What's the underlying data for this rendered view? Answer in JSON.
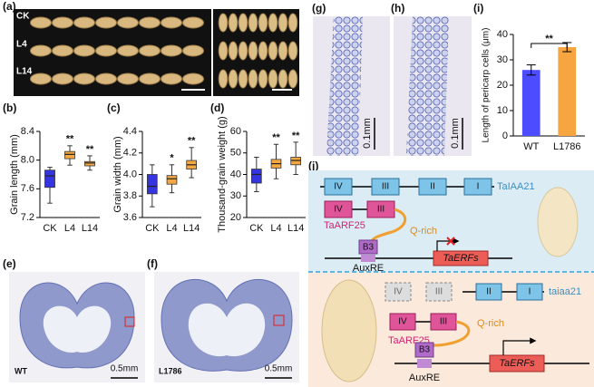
{
  "panel_labels": [
    "(a)",
    "(b)",
    "(c)",
    "(d)",
    "(e)",
    "(f)",
    "(g)",
    "(h)",
    "(i)",
    "(j)"
  ],
  "photo_a": {
    "rows": [
      "CK",
      "L4",
      "L14"
    ]
  },
  "photo_e": {
    "label": "WT",
    "scale": "0.5mm"
  },
  "photo_f": {
    "label": "L1786",
    "scale": "0.5mm"
  },
  "photo_g": {
    "scale": "0.1mm"
  },
  "photo_h": {
    "scale": "0.1mm"
  },
  "chart_data": [
    {
      "type": "box",
      "y_label": "Grain length (mm)",
      "categories": [
        "CK",
        "L4",
        "L14"
      ],
      "min": [
        7.4,
        7.93,
        7.86
      ],
      "q1": [
        7.62,
        8.02,
        7.92
      ],
      "median": [
        7.78,
        8.08,
        7.96
      ],
      "q3": [
        7.86,
        8.12,
        7.98
      ],
      "max": [
        7.9,
        8.2,
        8.06
      ],
      "colors": [
        "#3434e0",
        "#f5a742",
        "#f5a742"
      ],
      "significance": [
        null,
        "**",
        "**"
      ],
      "ylim": [
        7.2,
        8.4
      ],
      "yticks": [
        7.2,
        7.6,
        {
          "value": 8,
          "label": "8.0"
        },
        8.4
      ]
    },
    {
      "type": "box",
      "y_label": "Grain width (mm)",
      "categories": [
        "CK",
        "L4",
        "L14"
      ],
      "min": [
        3.7,
        3.83,
        3.97
      ],
      "q1": [
        3.82,
        3.91,
        4.05
      ],
      "median": [
        3.89,
        3.96,
        4.09
      ],
      "q3": [
        4.0,
        3.99,
        4.13
      ],
      "max": [
        4.09,
        4.09,
        4.25
      ],
      "colors": [
        "#3434e0",
        "#f5a742",
        "#f5a742"
      ],
      "significance": [
        null,
        "*",
        "**"
      ],
      "ylim": [
        3.6,
        4.4
      ],
      "yticks": [
        3.6,
        3.8,
        {
          "value": 4,
          "label": "4.0"
        },
        4.2,
        4.4
      ]
    },
    {
      "type": "box",
      "y_label": "Thousand-grain weight (g)",
      "categories": [
        "CK",
        "L4",
        "L14"
      ],
      "min": [
        32,
        38,
        40
      ],
      "q1": [
        36,
        43,
        44.5
      ],
      "median": [
        40,
        45,
        46.5
      ],
      "q3": [
        42.5,
        47,
        48
      ],
      "max": [
        48,
        54,
        55
      ],
      "colors": [
        "#3434e0",
        "#f5a742",
        "#f5a742"
      ],
      "significance": [
        null,
        "**",
        "**"
      ],
      "ylim": [
        20,
        60
      ],
      "yticks": [
        20,
        30,
        40,
        50,
        60
      ]
    },
    {
      "type": "bar",
      "y_label": "Length of pericarp cells (μm)",
      "categories": [
        "WT",
        "L1786"
      ],
      "values": [
        26,
        35
      ],
      "errors": [
        2,
        1.8
      ],
      "colors": [
        "#4d4dff",
        "#f7a541"
      ],
      "significance": "**",
      "ylim": [
        0,
        40
      ],
      "yticks": [
        0,
        10,
        20,
        30,
        40
      ]
    }
  ],
  "diagram": {
    "wild": {
      "iaa_domains": [
        "IV",
        "III",
        "II",
        "I"
      ],
      "iaa_name": "TaIAA21",
      "arf_domains": [
        "IV",
        "III"
      ],
      "arf_name": "TaARF25",
      "qrich": "Q-rich",
      "b3": "B3",
      "auxre": "AuxRE",
      "target": "TaERFs"
    },
    "mutant": {
      "iaa_domains": [
        "IV",
        "III",
        "II",
        "I"
      ],
      "iaa_name": "taiaa21",
      "arf_domains": [
        "IV",
        "III"
      ],
      "arf_name": "TaARF25",
      "qrich": "Q-rich",
      "b3": "B3",
      "auxre": "AuxRE",
      "target": "TaERFs"
    }
  }
}
